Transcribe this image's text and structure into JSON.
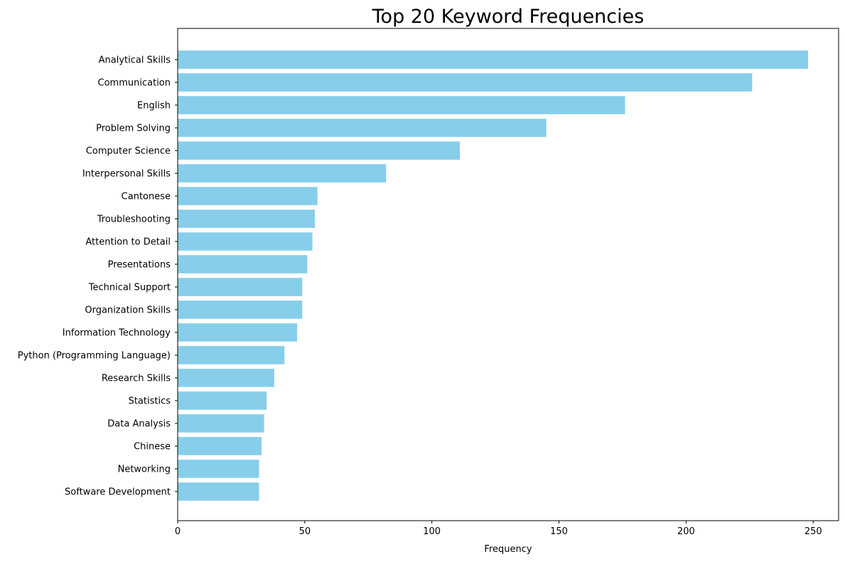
{
  "chart_data": {
    "type": "bar",
    "orientation": "horizontal",
    "title": "Top 20 Keyword Frequencies",
    "xlabel": "Frequency",
    "ylabel": "",
    "xlim": [
      0,
      260
    ],
    "xticks": [
      0,
      50,
      100,
      150,
      200,
      250
    ],
    "grid": false,
    "bar_color": "#87ceeb",
    "categories": [
      "Analytical Skills",
      "Communication",
      "English",
      "Problem Solving",
      "Computer Science",
      "Interpersonal Skills",
      "Cantonese",
      "Troubleshooting",
      "Attention to Detail",
      "Presentations",
      "Technical Support",
      "Organization Skills",
      "Information Technology",
      "Python (Programming Language)",
      "Research Skills",
      "Statistics",
      "Data Analysis",
      "Chinese",
      "Networking",
      "Software Development"
    ],
    "values": [
      248,
      226,
      176,
      145,
      111,
      82,
      55,
      54,
      53,
      51,
      49,
      49,
      47,
      42,
      38,
      35,
      34,
      33,
      32,
      32
    ]
  }
}
